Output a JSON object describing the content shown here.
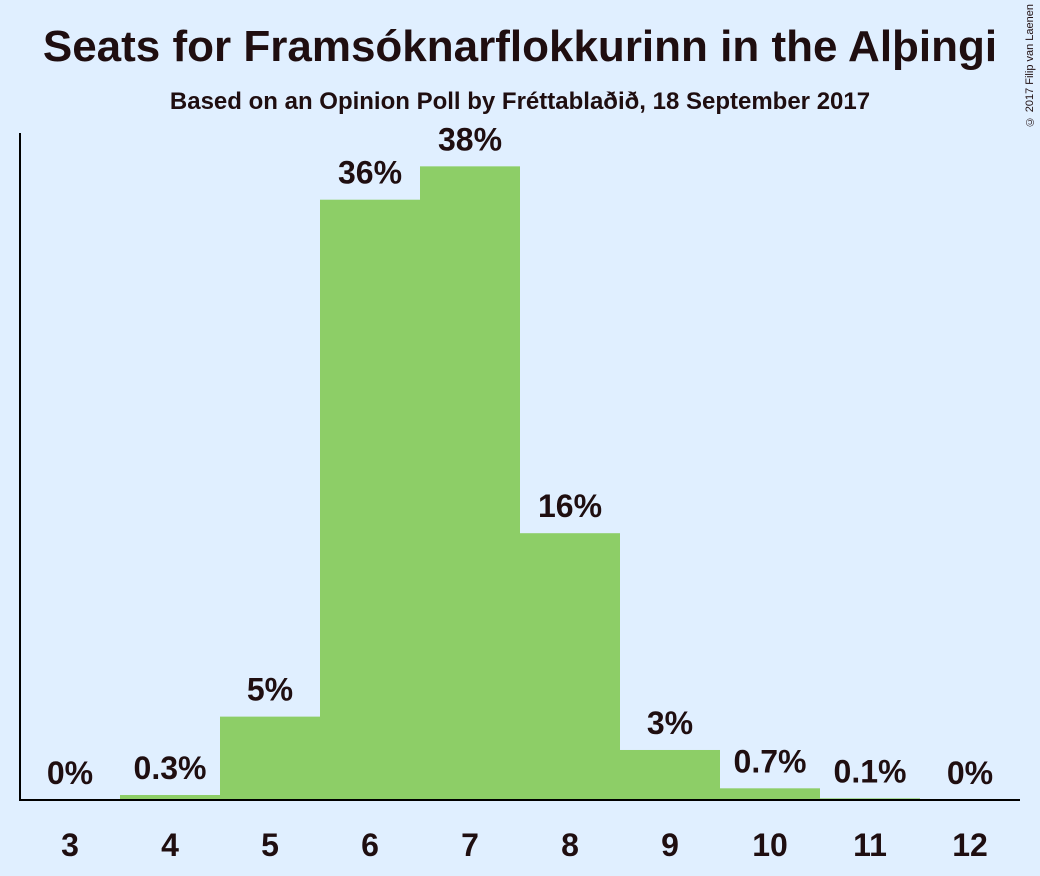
{
  "chart_data": {
    "type": "bar",
    "title": "Seats for Framsóknarflokkurinn in the Alþingi",
    "subtitle": "Based on an Opinion Poll by Fréttablaðið, 18 September 2017",
    "categories": [
      "3",
      "4",
      "5",
      "6",
      "7",
      "8",
      "9",
      "10",
      "11",
      "12"
    ],
    "values": [
      0,
      0.3,
      5,
      36,
      38,
      16,
      3,
      0.7,
      0.1,
      0
    ],
    "data_labels": [
      "0%",
      "0.3%",
      "5%",
      "36%",
      "38%",
      "16%",
      "3%",
      "0.7%",
      "0.1%",
      "0%"
    ],
    "unit": "%",
    "ylim": [
      0,
      40
    ],
    "xlabel": "",
    "ylabel": "",
    "grid": false,
    "bar_color": "#8dce67",
    "background_color": "#e0efff",
    "text_color": "#1f0e10"
  },
  "copyright": "© 2017 Filip van Laenen"
}
